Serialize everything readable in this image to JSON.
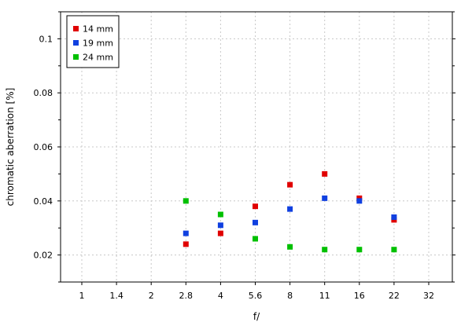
{
  "chart_data": {
    "type": "scatter",
    "xlabel": "f/",
    "ylabel": "chromatic aberration [%]",
    "x_ticks": [
      "1",
      "1.4",
      "2",
      "2.8",
      "4",
      "5.6",
      "8",
      "11",
      "16",
      "22",
      "32"
    ],
    "x_scale": "categorical",
    "y_ticks": [
      0.02,
      0.04,
      0.06,
      0.08,
      0.1
    ],
    "y_tick_labels": [
      "0.02",
      "0.04",
      "0.06",
      "0.08",
      "0.1"
    ],
    "ylim": [
      0.01,
      0.11
    ],
    "grid": true,
    "legend": "top-left",
    "series": [
      {
        "name": "14 mm",
        "color": "#e00000",
        "points": [
          {
            "x": "2.8",
            "y": 0.024
          },
          {
            "x": "4",
            "y": 0.028
          },
          {
            "x": "5.6",
            "y": 0.038
          },
          {
            "x": "8",
            "y": 0.046
          },
          {
            "x": "11",
            "y": 0.05
          },
          {
            "x": "16",
            "y": 0.041
          },
          {
            "x": "22",
            "y": 0.033
          }
        ]
      },
      {
        "name": "19 mm",
        "color": "#1040e0",
        "points": [
          {
            "x": "2.8",
            "y": 0.028
          },
          {
            "x": "4",
            "y": 0.031
          },
          {
            "x": "5.6",
            "y": 0.032
          },
          {
            "x": "8",
            "y": 0.037
          },
          {
            "x": "11",
            "y": 0.041
          },
          {
            "x": "16",
            "y": 0.04
          },
          {
            "x": "22",
            "y": 0.034
          }
        ]
      },
      {
        "name": "24 mm",
        "color": "#00c000",
        "points": [
          {
            "x": "2.8",
            "y": 0.04
          },
          {
            "x": "4",
            "y": 0.035
          },
          {
            "x": "5.6",
            "y": 0.026
          },
          {
            "x": "8",
            "y": 0.023
          },
          {
            "x": "11",
            "y": 0.022
          },
          {
            "x": "16",
            "y": 0.022
          },
          {
            "x": "22",
            "y": 0.022
          }
        ]
      }
    ]
  }
}
